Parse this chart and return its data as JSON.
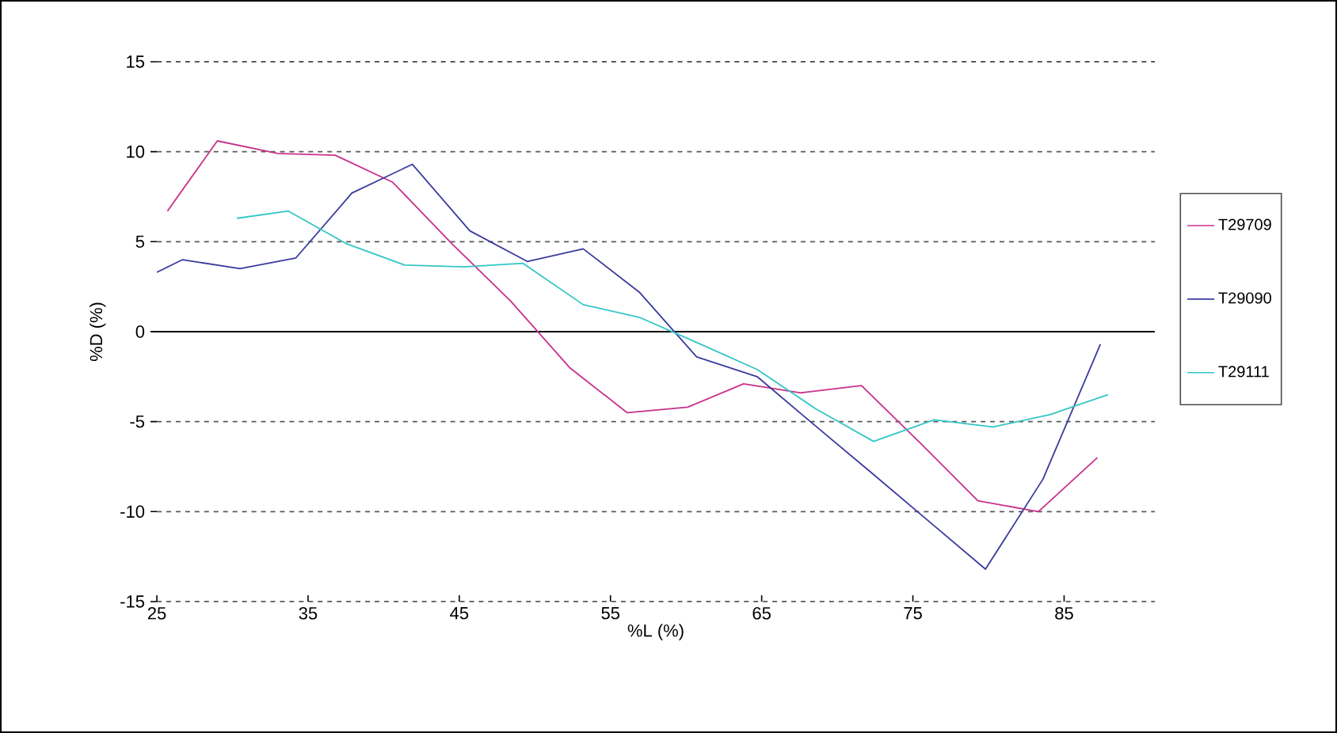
{
  "chart_data": {
    "type": "line",
    "xlabel": "%L (%)",
    "ylabel": "%D (%)",
    "xlim": [
      25,
      91
    ],
    "xticks": [
      25,
      35,
      45,
      55,
      65,
      75,
      85
    ],
    "ylim": [
      -15,
      15
    ],
    "yticks": [
      -15,
      -10,
      -5,
      0,
      5,
      10,
      15
    ],
    "grid": "y",
    "legend": "right",
    "marker": "none",
    "line_style": "solid",
    "series": [
      {
        "name": "T29709",
        "color": "#c8308c",
        "x": [
          25.7,
          29.0,
          33.0,
          36.8,
          40.6,
          44.5,
          48.4,
          52.3,
          56.1,
          60.1,
          63.8,
          67.6,
          71.6,
          75.5,
          79.3,
          83.3,
          87.2
        ],
        "values": [
          6.7,
          10.6,
          9.9,
          9.8,
          8.3,
          4.9,
          1.7,
          -2.0,
          -4.5,
          -4.2,
          -2.9,
          -3.4,
          -3.0,
          -6.2,
          -9.4,
          -10.0,
          -7.0
        ]
      },
      {
        "name": "T29090",
        "color": "#3b3b9e",
        "x": [
          25.0,
          26.7,
          30.5,
          34.2,
          37.9,
          41.9,
          45.7,
          49.5,
          53.2,
          56.9,
          60.7,
          64.7,
          68.5,
          72.2,
          76.0,
          79.8,
          83.6,
          87.4
        ],
        "values": [
          3.3,
          4.0,
          3.5,
          4.1,
          7.7,
          9.3,
          5.6,
          3.9,
          4.6,
          2.2,
          -1.4,
          -2.5,
          -5.2,
          -7.8,
          -10.5,
          -13.2,
          -8.2,
          -0.7
        ]
      },
      {
        "name": "T29111",
        "color": "#33c6c6",
        "x": [
          30.3,
          33.7,
          37.5,
          41.4,
          45.3,
          49.2,
          53.2,
          56.9,
          60.7,
          64.7,
          68.6,
          72.4,
          76.4,
          80.3,
          84.1,
          87.9
        ],
        "values": [
          6.3,
          6.7,
          4.9,
          3.7,
          3.6,
          3.8,
          1.5,
          0.8,
          -0.6,
          -2.1,
          -4.3,
          -6.1,
          -4.9,
          -5.3,
          -4.6,
          -3.5
        ]
      }
    ]
  }
}
